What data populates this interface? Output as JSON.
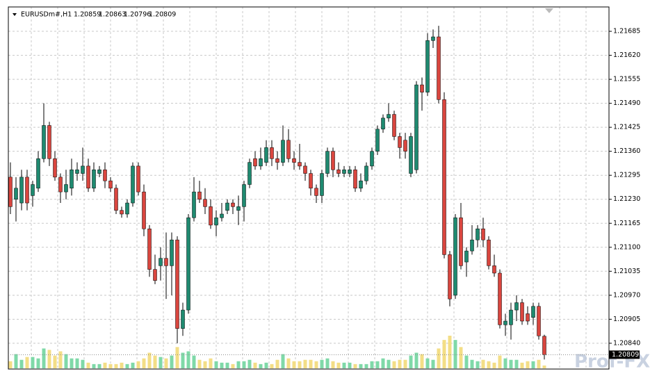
{
  "chart_data": {
    "type": "candlestick",
    "symbol": "EURUSDm#,H1",
    "watermark": "Prof-FX",
    "ylim": [
      1.20772,
      1.21751
    ],
    "yticks": [
      1.21685,
      {
        "value": 1.2162,
        "label": "1.21620"
      },
      1.21555,
      {
        "value": 1.2149,
        "label": "1.21490"
      },
      1.21425,
      {
        "value": 1.2136,
        "label": "1.21360"
      },
      1.21295,
      {
        "value": 1.2123,
        "label": "1.21230"
      },
      1.21165,
      {
        "value": 1.211,
        "label": "1.21100"
      },
      1.21035,
      {
        "value": 1.2097,
        "label": "1.20970"
      },
      1.20905,
      {
        "value": 1.2084,
        "label": "1.20840"
      }
    ],
    "grid": true,
    "up_color": "#1f8a70",
    "down_color": "#d9463f",
    "volume_up_color": "#7fd9a8",
    "volume_down_color": "#f3de86",
    "open": [
      1.2129,
      1.2123,
      1.2122,
      1.2129,
      1.2124,
      1.2126,
      1.2134,
      1.2143,
      1.2134,
      1.2129,
      1.2125,
      1.2126,
      1.213,
      1.213,
      1.2132,
      1.2126,
      1.213,
      1.2131,
      1.2128,
      1.2126,
      1.212,
      1.2119,
      1.2122,
      1.2132,
      1.2125,
      1.2115,
      1.2104,
      1.2105,
      1.2107,
      1.2105,
      1.2112,
      1.2088,
      1.2093,
      1.2118,
      1.2125,
      1.2123,
      1.2121,
      1.2116,
      1.2118,
      1.212,
      1.2122,
      1.212,
      1.2121,
      1.2127,
      1.2134,
      1.2132,
      1.2133,
      1.2137,
      1.2134,
      1.2133,
      1.2139,
      1.2134,
      1.2133,
      1.2132,
      1.213,
      1.2126,
      1.2124,
      1.213,
      1.2136,
      1.2131,
      1.213,
      1.213,
      1.2131,
      1.2126,
      1.2128,
      1.2132,
      1.2136,
      1.2142,
      1.2145,
      1.2146,
      1.214,
      1.2139,
      1.213,
      1.2131,
      1.2154,
      1.2152,
      1.2166,
      1.2167,
      1.215,
      1.2108,
      1.2097,
      1.2118,
      1.2106,
      1.2109,
      1.2112,
      1.2115,
      1.2112,
      1.2105,
      1.2103,
      1.2089,
      1.2089,
      1.2093,
      1.2095,
      1.2092,
      1.2091,
      1.2094,
      1.20859
    ],
    "high": [
      1.2133,
      1.2129,
      1.2131,
      1.2131,
      1.2128,
      1.2136,
      1.2149,
      1.2144,
      1.2136,
      1.213,
      1.2131,
      1.2134,
      1.2133,
      1.2137,
      1.2134,
      1.2133,
      1.2132,
      1.2133,
      1.2129,
      1.2127,
      1.2121,
      1.2123,
      1.2133,
      1.2133,
      1.2127,
      1.2116,
      1.2108,
      1.211,
      1.2114,
      1.2114,
      1.2113,
      1.2095,
      1.2119,
      1.2129,
      1.2128,
      1.2126,
      1.2123,
      1.212,
      1.2122,
      1.2123,
      1.2123,
      1.2124,
      1.2128,
      1.2134,
      1.2136,
      1.2137,
      1.2139,
      1.2139,
      1.2136,
      1.2143,
      1.2142,
      1.2136,
      1.2138,
      1.2133,
      1.2131,
      1.2127,
      1.2131,
      1.2137,
      1.2137,
      1.2133,
      1.2132,
      1.2132,
      1.2132,
      1.213,
      1.2133,
      1.2137,
      1.2143,
      1.2146,
      1.2149,
      1.2147,
      1.2141,
      1.2141,
      1.2141,
      1.2155,
      1.2156,
      1.2168,
      1.2169,
      1.217,
      1.2152,
      1.2109,
      1.2119,
      1.2122,
      1.211,
      1.2116,
      1.2116,
      1.2118,
      1.2113,
      1.2108,
      1.2104,
      1.2092,
      1.2095,
      1.2097,
      1.2096,
      1.2094,
      1.2095,
      1.2095,
      1.20863
    ],
    "low": [
      1.2119,
      1.2117,
      1.212,
      1.212,
      1.2121,
      1.2125,
      1.2133,
      1.2132,
      1.2128,
      1.2122,
      1.2123,
      1.2124,
      1.2128,
      1.2128,
      1.2125,
      1.2125,
      1.2129,
      1.2126,
      1.2125,
      1.2119,
      1.2118,
      1.2118,
      1.2121,
      1.2124,
      1.2113,
      1.2102,
      1.21,
      1.2101,
      1.2096,
      1.2097,
      1.2084,
      1.2086,
      1.2092,
      1.2117,
      1.2122,
      1.2119,
      1.2115,
      1.2113,
      1.2117,
      1.2119,
      1.2119,
      1.2116,
      1.2117,
      1.2126,
      1.2131,
      1.2131,
      1.2132,
      1.2132,
      1.2131,
      1.2132,
      1.2133,
      1.2131,
      1.2131,
      1.2128,
      1.2124,
      1.2122,
      1.2122,
      1.2129,
      1.2129,
      1.2129,
      1.2129,
      1.2129,
      1.2125,
      1.2125,
      1.2127,
      1.2131,
      1.2135,
      1.2141,
      1.2144,
      1.2139,
      1.2134,
      1.2134,
      1.2129,
      1.213,
      1.2147,
      1.2151,
      1.2164,
      1.2149,
      1.2107,
      1.2094,
      1.2096,
      1.2104,
      1.2102,
      1.2108,
      1.211,
      1.211,
      1.2104,
      1.2102,
      1.2088,
      1.2086,
      1.2085,
      1.209,
      1.2089,
      1.2089,
      1.2089,
      1.2085,
      1.20796
    ],
    "close": [
      1.2121,
      1.2126,
      1.2129,
      1.2122,
      1.2127,
      1.2134,
      1.2143,
      1.2134,
      1.2129,
      1.2125,
      1.2127,
      1.2131,
      1.2131,
      1.2132,
      1.2126,
      1.2131,
      1.2131,
      1.2128,
      1.2126,
      1.212,
      1.2119,
      1.2122,
      1.2132,
      1.2125,
      1.2115,
      1.2104,
      1.2101,
      1.2107,
      1.2105,
      1.2112,
      1.2088,
      1.2093,
      1.2118,
      1.2125,
      1.2123,
      1.2121,
      1.2116,
      1.2118,
      1.2119,
      1.2122,
      1.2121,
      1.2121,
      1.2127,
      1.2133,
      1.2132,
      1.2134,
      1.2137,
      1.2134,
      1.2133,
      1.2139,
      1.2134,
      1.2133,
      1.2132,
      1.213,
      1.2126,
      1.2124,
      1.213,
      1.2136,
      1.2131,
      1.213,
      1.2131,
      1.2131,
      1.2126,
      1.2128,
      1.2132,
      1.2136,
      1.2142,
      1.2145,
      1.2146,
      1.214,
      1.2137,
      1.2136,
      1.214,
      1.2154,
      1.2152,
      1.2166,
      1.2167,
      1.215,
      1.2108,
      1.2096,
      1.2118,
      1.2105,
      1.2109,
      1.2112,
      1.2115,
      1.2112,
      1.2105,
      1.2103,
      1.2089,
      1.209,
      1.2093,
      1.2095,
      1.209,
      1.209,
      1.2094,
      1.2086,
      1.20809
    ],
    "volume": [
      10,
      20,
      12,
      16,
      16,
      14,
      28,
      26,
      18,
      24,
      20,
      14,
      14,
      12,
      8,
      6,
      6,
      8,
      6,
      6,
      8,
      6,
      8,
      10,
      14,
      22,
      18,
      16,
      14,
      18,
      30,
      22,
      24,
      18,
      12,
      10,
      14,
      10,
      8,
      8,
      6,
      10,
      10,
      12,
      8,
      6,
      8,
      6,
      12,
      20,
      14,
      10,
      10,
      12,
      12,
      10,
      12,
      14,
      10,
      8,
      8,
      8,
      6,
      6,
      6,
      10,
      10,
      14,
      12,
      10,
      12,
      12,
      18,
      22,
      20,
      14,
      12,
      28,
      40,
      46,
      40,
      30,
      18,
      12,
      10,
      12,
      10,
      8,
      18,
      14,
      12,
      12,
      8,
      10,
      10,
      12,
      4
    ]
  }
}
